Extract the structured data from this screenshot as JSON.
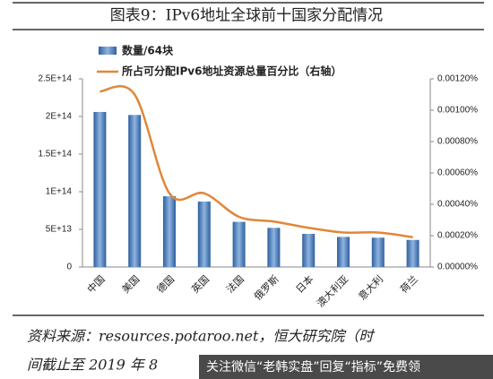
{
  "chart_data": {
    "type": "bar",
    "title": "图表9：IPv6地址全球前十国家分配情况",
    "categories": [
      "中国",
      "美国",
      "德国",
      "英国",
      "法国",
      "俄罗斯",
      "日本",
      "澳大利亚",
      "意大利",
      "荷兰"
    ],
    "series": [
      {
        "name": "数量/64块",
        "color": "#4a7fc0",
        "values": [
          206000000000000,
          202000000000000,
          94000000000000,
          87000000000000,
          60000000000000,
          52000000000000,
          44000000000000,
          40000000000000,
          39000000000000,
          36000000000000
        ]
      },
      {
        "name": "所占可分配IPv6地址资源总量百分比（右轴）",
        "color": "#e0873a",
        "type": "line",
        "axis": "y2",
        "values": [
          0.00112,
          0.0011,
          0.00047,
          0.00047,
          0.00032,
          0.00029,
          0.00025,
          0.00022,
          0.00022,
          0.00019
        ]
      }
    ],
    "ylim": [
      0,
      250000000000000
    ],
    "yticks": [
      0,
      {
        "value": 50000000000000,
        "label": "5E+13"
      },
      {
        "value": 100000000000000,
        "label": "1E+14"
      },
      {
        "value": 150000000000000,
        "label": "1.5E+14"
      },
      {
        "value": 200000000000000,
        "label": "2E+14"
      },
      {
        "value": 250000000000000,
        "label": "2.5E+14"
      }
    ],
    "y2lim": [
      0,
      0.0012
    ],
    "y2ticks": [
      {
        "value": 0,
        "label": "0.00000%"
      },
      {
        "value": 0.0002,
        "label": "0.00020%"
      },
      {
        "value": 0.0004,
        "label": "0.00040%"
      },
      {
        "value": 0.0006,
        "label": "0.00060%"
      },
      {
        "value": 0.0008,
        "label": "0.00080%"
      },
      {
        "value": 0.001,
        "label": "0.00100%"
      },
      {
        "value": 0.0012,
        "label": "0.00120%"
      }
    ],
    "source": [
      "资料来源：resources.potaroo.net，恒大研究院（时",
      "间截止至 2019 年 8"
    ],
    "watermark": "关注微信“老韩实盘”回复“指标”免费领"
  }
}
